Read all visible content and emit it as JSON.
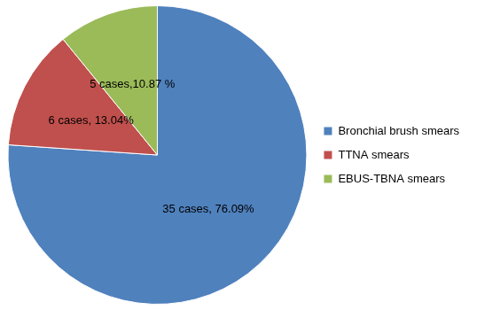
{
  "chart_data": {
    "type": "pie",
    "categories": [
      "Bronchial brush smears",
      "TTNA smears",
      "EBUS-TBNA smears"
    ],
    "values": [
      35,
      6,
      5
    ],
    "value_labels": [
      "35 cases, 76.09%",
      "6 cases, 13.04%",
      "5 cases,10.87 %"
    ],
    "colors": [
      "#4f81bd",
      "#c0504d",
      "#9bbb59"
    ],
    "legend": "right",
    "data_labels": true
  }
}
